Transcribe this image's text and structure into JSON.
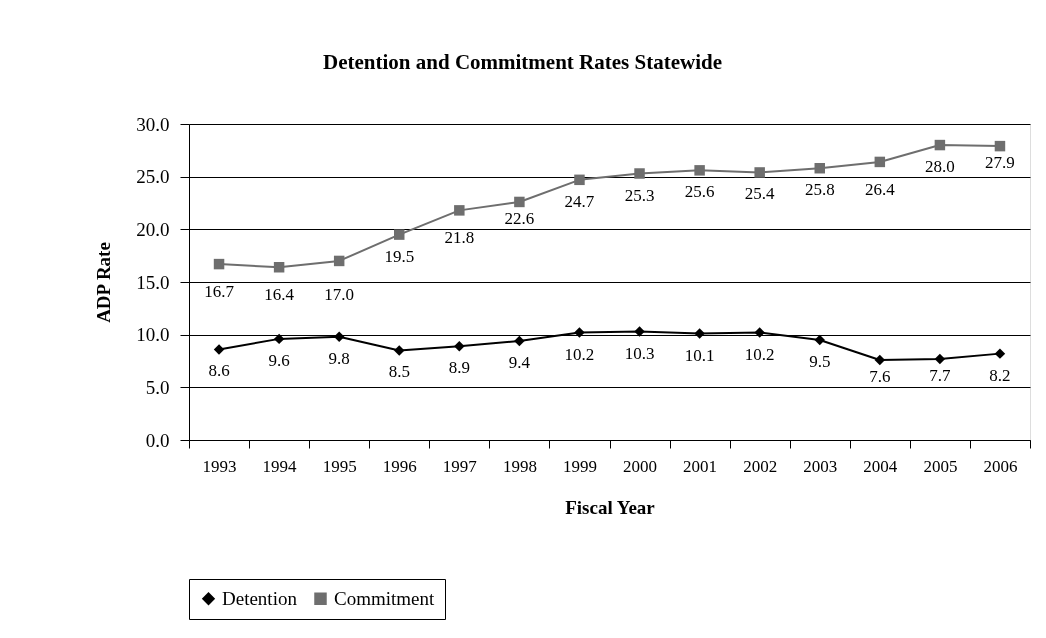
{
  "chart_data": {
    "type": "line",
    "title": "Detention and Commitment Rates Statewide",
    "xlabel": "Fiscal Year",
    "ylabel": "ADP Rate",
    "categories": [
      "1993",
      "1994",
      "1995",
      "1996",
      "1997",
      "1998",
      "1999",
      "2000",
      "2001",
      "2002",
      "2003",
      "2004",
      "2005",
      "2006"
    ],
    "series": [
      {
        "name": "Detention",
        "color": "#000000",
        "marker": "diamond",
        "values": [
          8.6,
          9.6,
          9.8,
          8.5,
          8.9,
          9.4,
          10.2,
          10.3,
          10.1,
          10.2,
          9.5,
          7.6,
          7.7,
          8.2
        ],
        "value_labels": [
          "8.6",
          "9.6",
          "9.8",
          "8.5",
          "8.9",
          "9.4",
          "10.2",
          "10.3",
          "10.1",
          "10.2",
          "9.5",
          "7.6",
          "7.7",
          "8.2"
        ]
      },
      {
        "name": "Commitment",
        "color": "#6e6e6e",
        "marker": "square",
        "values": [
          16.7,
          16.4,
          17.0,
          19.5,
          21.8,
          22.6,
          24.7,
          25.3,
          25.6,
          25.4,
          25.8,
          26.4,
          28.0,
          27.9
        ],
        "value_labels": [
          "16.7",
          "16.4",
          "17.0",
          "19.5",
          "21.8",
          "22.6",
          "24.7",
          "25.3",
          "25.6",
          "25.4",
          "25.8",
          "26.4",
          "28.0",
          "27.9"
        ]
      }
    ],
    "ylim": [
      0,
      30
    ],
    "yticks": [
      {
        "value": 0,
        "label": "0.0"
      },
      {
        "value": 5,
        "label": "5.0"
      },
      {
        "value": 10,
        "label": "10.0"
      },
      {
        "value": 15,
        "label": "15.0"
      },
      {
        "value": 20,
        "label": "20.0"
      },
      {
        "value": 25,
        "label": "25.0"
      },
      {
        "value": 30,
        "label": "30.0"
      }
    ],
    "grid": "y",
    "legend": "bottom"
  }
}
